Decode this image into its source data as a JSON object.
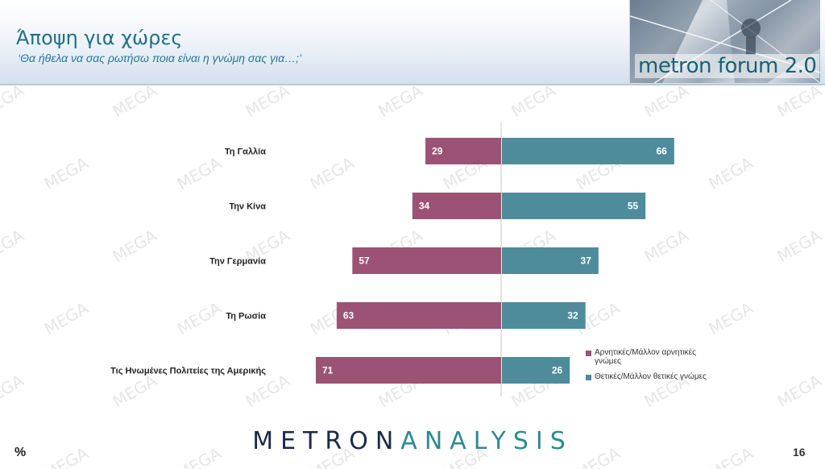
{
  "header": {
    "title": "Άποψη για χώρες",
    "subtitle": "‘Θα ήθελα να σας ρωτήσω ποια είναι η γνώμη σας για…;’",
    "brand": "metron forum 2.0"
  },
  "watermark": "MEGA",
  "footer": {
    "logo_bold": "METRON",
    "logo_light": "ANALYSIS",
    "unit": "%",
    "page": "16"
  },
  "colors": {
    "negative": "#9c5275",
    "positive": "#4e8c9c"
  },
  "chart_data": {
    "type": "bar",
    "orientation": "horizontal-diverging",
    "categories": [
      "Τη Γαλλία",
      "Την Κίνα",
      "Την Γερμανία",
      "Τη Ρωσία",
      "Τις Ηνωμένες Πολιτείες της Αμερικής"
    ],
    "series": [
      {
        "name": "Αρνητικές/Μάλλον αρνητικές γνώμες",
        "values": [
          29,
          34,
          57,
          63,
          71
        ]
      },
      {
        "name": "Θετικές/Μάλλον θετικές γνώμες",
        "values": [
          66,
          55,
          37,
          32,
          26
        ]
      }
    ],
    "unit": "%",
    "legend": "right",
    "grid": false
  }
}
